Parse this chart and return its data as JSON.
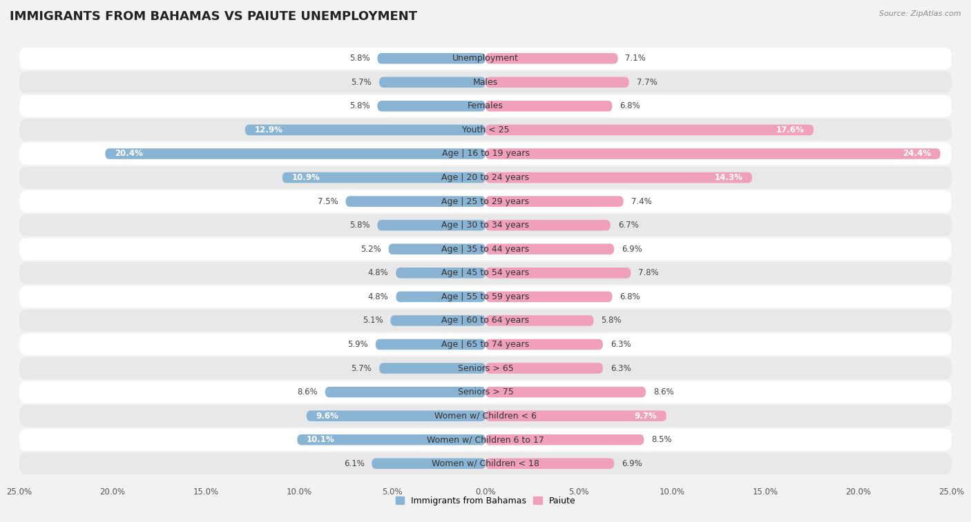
{
  "title": "IMMIGRANTS FROM BAHAMAS VS PAIUTE UNEMPLOYMENT",
  "source": "Source: ZipAtlas.com",
  "categories": [
    "Unemployment",
    "Males",
    "Females",
    "Youth < 25",
    "Age | 16 to 19 years",
    "Age | 20 to 24 years",
    "Age | 25 to 29 years",
    "Age | 30 to 34 years",
    "Age | 35 to 44 years",
    "Age | 45 to 54 years",
    "Age | 55 to 59 years",
    "Age | 60 to 64 years",
    "Age | 65 to 74 years",
    "Seniors > 65",
    "Seniors > 75",
    "Women w/ Children < 6",
    "Women w/ Children 6 to 17",
    "Women w/ Children < 18"
  ],
  "left_values": [
    5.8,
    5.7,
    5.8,
    12.9,
    20.4,
    10.9,
    7.5,
    5.8,
    5.2,
    4.8,
    4.8,
    5.1,
    5.9,
    5.7,
    8.6,
    9.6,
    10.1,
    6.1
  ],
  "right_values": [
    7.1,
    7.7,
    6.8,
    17.6,
    24.4,
    14.3,
    7.4,
    6.7,
    6.9,
    7.8,
    6.8,
    5.8,
    6.3,
    6.3,
    8.6,
    9.7,
    8.5,
    6.9
  ],
  "left_color": "#8ab4d4",
  "right_color": "#f0a0b8",
  "bar_height": 0.45,
  "xlim": 25.0,
  "legend_labels": [
    "Immigrants from Bahamas",
    "Paiute"
  ],
  "background_color": "#f2f2f2",
  "row_colors_odd": "#ffffff",
  "row_colors_even": "#e8e8e8",
  "title_fontsize": 13,
  "label_fontsize": 9,
  "value_fontsize": 8.5,
  "inside_label_threshold": 9.0
}
